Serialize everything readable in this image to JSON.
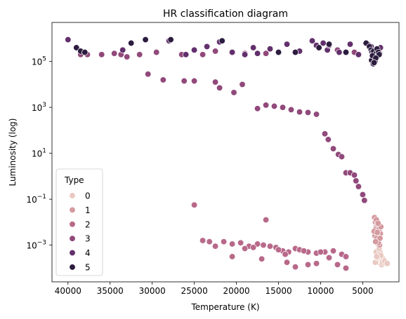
{
  "chart_data": {
    "type": "scatter",
    "title": "HR classification diagram",
    "xlabel": "Temperature (K)",
    "ylabel": "Luminosity (log)",
    "x_inverted": true,
    "xlim": [
      41900,
      700
    ],
    "y_scale": "log",
    "ylim_log10": [
      -4.6,
      6.7
    ],
    "x_ticks": [
      40000,
      35000,
      30000,
      25000,
      20000,
      15000,
      10000,
      5000
    ],
    "x_tick_labels": [
      "40000",
      "35000",
      "30000",
      "25000",
      "20000",
      "15000",
      "10000",
      "5000"
    ],
    "y_ticks_log10": [
      -3,
      -1,
      1,
      3,
      5
    ],
    "y_tick_bases": [
      "10",
      "10",
      "10",
      "10",
      "10"
    ],
    "y_tick_exponents": [
      "−3",
      "−1",
      "1",
      "3",
      "5"
    ],
    "legend": {
      "title": "Type",
      "placement": "lower-left",
      "labels": [
        "0",
        "1",
        "2",
        "3",
        "4",
        "5"
      ]
    },
    "colors": [
      "#e9c9c2",
      "#d49a9f",
      "#b8698a",
      "#91497b",
      "#62306c",
      "#2c1c3f"
    ],
    "series": [
      {
        "name": "0",
        "points": [
          [
            3200,
            -3.2
          ],
          [
            3100,
            -3.4
          ],
          [
            3000,
            -3.6
          ],
          [
            2900,
            -3.8
          ],
          [
            2800,
            -3.5
          ],
          [
            3400,
            -3.3
          ],
          [
            3300,
            -3.65
          ],
          [
            2700,
            -3.7
          ],
          [
            2600,
            -3.6
          ],
          [
            3500,
            -3.75
          ],
          [
            3150,
            -3.0
          ],
          [
            2950,
            -3.3
          ],
          [
            2500,
            -3.8
          ],
          [
            2750,
            -3.85
          ],
          [
            3250,
            -3.55
          ],
          [
            3050,
            -3.15
          ],
          [
            2850,
            -3.45
          ],
          [
            2650,
            -3.75
          ],
          [
            3350,
            -3.5
          ],
          [
            2400,
            -3.7
          ],
          [
            2100,
            -3.8
          ]
        ]
      },
      {
        "name": "1",
        "points": [
          [
            3600,
            -1.8
          ],
          [
            3500,
            -2.0
          ],
          [
            3400,
            -2.2
          ],
          [
            3300,
            -2.4
          ],
          [
            3200,
            -2.6
          ],
          [
            3100,
            -2.8
          ],
          [
            3000,
            -3.0
          ],
          [
            2900,
            -2.5
          ],
          [
            3450,
            -2.3
          ],
          [
            3550,
            -2.6
          ],
          [
            3350,
            -2.7
          ],
          [
            3250,
            -2.1
          ],
          [
            3150,
            -2.9
          ],
          [
            3050,
            -2.3
          ],
          [
            2950,
            -2.7
          ],
          [
            3650,
            -2.4
          ],
          [
            2850,
            -2.2
          ],
          [
            3380,
            -1.9
          ],
          [
            3280,
            -2.45
          ],
          [
            3480,
            -2.85
          ],
          [
            3180,
            -2.05
          ]
        ]
      },
      {
        "name": "2",
        "points": [
          [
            25000,
            -1.25
          ],
          [
            16500,
            -1.9
          ],
          [
            24000,
            -2.8
          ],
          [
            23200,
            -2.85
          ],
          [
            21500,
            -2.85
          ],
          [
            20500,
            -2.95
          ],
          [
            19500,
            -2.9
          ],
          [
            18500,
            -3.05
          ],
          [
            17500,
            -2.95
          ],
          [
            16800,
            -3.0
          ],
          [
            16000,
            -3.05
          ],
          [
            15300,
            -3.1
          ],
          [
            14500,
            -3.25
          ],
          [
            13800,
            -3.3
          ],
          [
            13000,
            -3.15
          ],
          [
            12500,
            -3.2
          ],
          [
            11500,
            -3.3
          ],
          [
            10500,
            -3.35
          ],
          [
            9500,
            -3.3
          ],
          [
            8500,
            -3.25
          ],
          [
            7500,
            -3.4
          ],
          [
            22500,
            -3.05
          ],
          [
            19000,
            -3.15
          ],
          [
            18000,
            -3.1
          ],
          [
            15000,
            -3.2
          ],
          [
            14200,
            -3.4
          ],
          [
            12000,
            -3.25
          ],
          [
            10000,
            -3.3
          ],
          [
            9000,
            -3.55
          ],
          [
            7000,
            -3.5
          ],
          [
            20500,
            -3.5
          ],
          [
            17000,
            -3.6
          ],
          [
            14000,
            -3.75
          ],
          [
            11500,
            -3.85
          ],
          [
            10500,
            -3.8
          ],
          [
            13000,
            -3.95
          ],
          [
            8000,
            -3.85
          ],
          [
            7000,
            -4.0
          ]
        ]
      },
      {
        "name": "3",
        "points": [
          [
            38500,
            5.3
          ],
          [
            37700,
            5.3
          ],
          [
            36000,
            5.3
          ],
          [
            33700,
            5.3
          ],
          [
            31500,
            5.3
          ],
          [
            30500,
            4.45
          ],
          [
            28700,
            4.2
          ],
          [
            26200,
            4.15
          ],
          [
            25000,
            4.15
          ],
          [
            22500,
            4.1
          ],
          [
            22000,
            3.85
          ],
          [
            20300,
            3.65
          ],
          [
            19300,
            4.0
          ],
          [
            17500,
            2.95
          ],
          [
            16500,
            3.1
          ],
          [
            15500,
            3.05
          ],
          [
            14500,
            3.0
          ],
          [
            13500,
            2.9
          ],
          [
            12500,
            2.8
          ],
          [
            11500,
            2.78
          ],
          [
            10500,
            2.7
          ],
          [
            9500,
            1.85
          ],
          [
            9100,
            1.6
          ],
          [
            8500,
            1.2
          ],
          [
            7900,
            0.95
          ],
          [
            7500,
            0.85
          ],
          [
            7000,
            0.15
          ],
          [
            6500,
            0.15
          ],
          [
            6000,
            0.05
          ],
          [
            5800,
            -0.2
          ],
          [
            5500,
            -0.45
          ],
          [
            5000,
            -0.8
          ],
          [
            4800,
            -1.05
          ],
          [
            34500,
            5.35
          ],
          [
            33000,
            5.2
          ],
          [
            29500,
            5.4
          ],
          [
            26500,
            5.3
          ],
          [
            24000,
            5.3
          ],
          [
            22500,
            5.45
          ],
          [
            19000,
            5.35
          ],
          [
            16500,
            5.35
          ],
          [
            13000,
            5.4
          ],
          [
            8000,
            5.5
          ],
          [
            6000,
            5.4
          ],
          [
            3600,
            5.5
          ]
        ]
      },
      {
        "name": "4",
        "points": [
          [
            40000,
            5.95
          ],
          [
            33500,
            5.5
          ],
          [
            28000,
            5.9
          ],
          [
            26000,
            5.3
          ],
          [
            25000,
            5.5
          ],
          [
            23500,
            5.65
          ],
          [
            22000,
            5.85
          ],
          [
            20500,
            5.4
          ],
          [
            19000,
            5.3
          ],
          [
            18000,
            5.6
          ],
          [
            17500,
            5.35
          ],
          [
            16000,
            5.55
          ],
          [
            14000,
            5.75
          ],
          [
            12500,
            5.45
          ],
          [
            11000,
            5.9
          ],
          [
            10500,
            5.7
          ],
          [
            9700,
            5.8
          ],
          [
            9200,
            5.5
          ],
          [
            9000,
            5.7
          ],
          [
            7800,
            5.4
          ],
          [
            6500,
            5.75
          ],
          [
            5500,
            5.3
          ],
          [
            4400,
            5.75
          ],
          [
            4000,
            5.65
          ],
          [
            3500,
            5.4
          ],
          [
            3000,
            5.35
          ],
          [
            2900,
            5.6
          ]
        ]
      },
      {
        "name": "5",
        "points": [
          [
            39000,
            5.6
          ],
          [
            38500,
            5.45
          ],
          [
            38000,
            5.4
          ],
          [
            32500,
            5.8
          ],
          [
            30800,
            5.95
          ],
          [
            27800,
            5.95
          ],
          [
            21700,
            5.9
          ],
          [
            15000,
            5.4
          ],
          [
            13000,
            5.4
          ],
          [
            10200,
            5.6
          ],
          [
            9000,
            5.75
          ],
          [
            7000,
            5.4
          ],
          [
            4600,
            5.8
          ],
          [
            4200,
            5.65
          ],
          [
            4000,
            5.5
          ],
          [
            3900,
            5.4
          ],
          [
            3800,
            5.3
          ],
          [
            3700,
            5.45
          ],
          [
            3600,
            5.1
          ],
          [
            3500,
            5.2
          ],
          [
            3400,
            5.35
          ],
          [
            3300,
            5.55
          ],
          [
            3200,
            5.25
          ],
          [
            3150,
            5.4
          ],
          [
            3050,
            5.3
          ],
          [
            3950,
            5.05
          ],
          [
            3750,
            4.9
          ],
          [
            3550,
            5.0
          ],
          [
            3850,
            5.25
          ],
          [
            3450,
            5.15
          ],
          [
            3650,
            4.95
          ]
        ]
      }
    ]
  }
}
